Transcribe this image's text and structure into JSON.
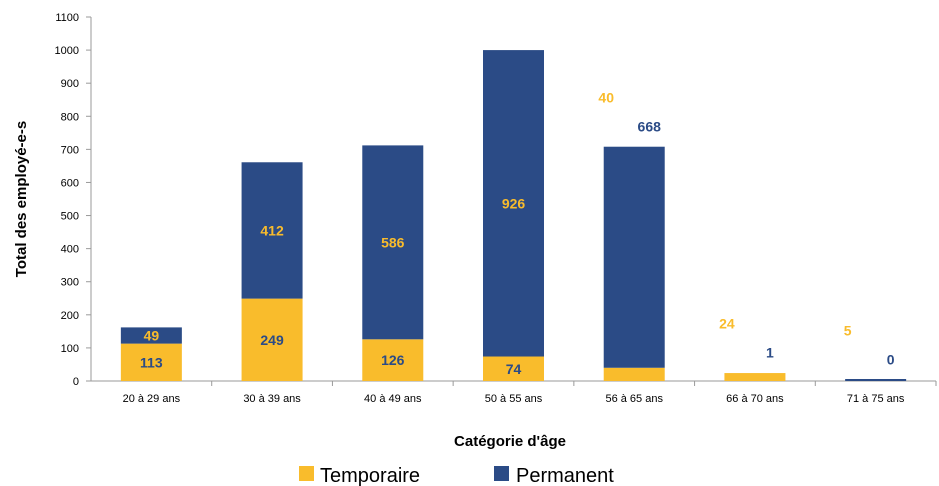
{
  "chart_data": {
    "type": "bar",
    "stacked": true,
    "categories": [
      "20 à 29 ans",
      "30 à 39 ans",
      "40 à 49 ans",
      "50 à 55 ans",
      "56 à 65 ans",
      "66 à 70 ans",
      "71 à 75 ans"
    ],
    "series": [
      {
        "name": "Temporaire",
        "color": "#F9BC2C",
        "values": [
          113,
          249,
          126,
          74,
          40,
          24,
          5
        ]
      },
      {
        "name": "Permanent",
        "color": "#2B4B86",
        "values": [
          49,
          412,
          586,
          926,
          668,
          1,
          0
        ]
      }
    ],
    "xlabel": "Catégorie d'âge",
    "ylabel": "Total des employé-e-s",
    "ylim": [
      0,
      1100
    ],
    "yticks": [
      0,
      100,
      200,
      300,
      400,
      500,
      600,
      700,
      800,
      900,
      1000,
      1100
    ],
    "grid": false,
    "legend": "bottom",
    "label_colors": {
      "on_bar": "#F9BC2C",
      "above_permanent": "#2B4B86"
    }
  }
}
